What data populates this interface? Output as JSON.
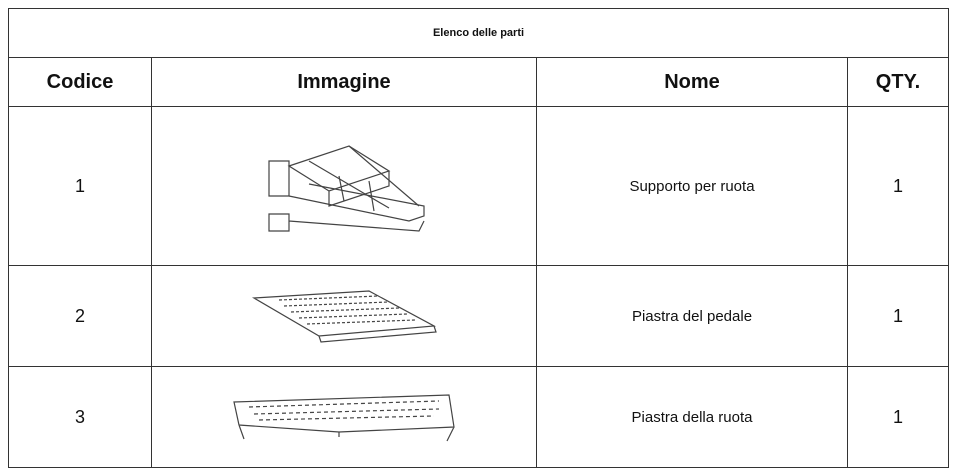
{
  "table": {
    "title": "Elenco delle parti",
    "headers": [
      "Codice",
      "Immagine",
      "Nome",
      "QTY."
    ],
    "rows": [
      {
        "code": "1",
        "name": "Supporto per ruota",
        "qty": "1"
      },
      {
        "code": "2",
        "name": "Piastra del pedale",
        "qty": "1"
      },
      {
        "code": "3",
        "name": "Piastra della ruota",
        "qty": "1"
      }
    ]
  }
}
